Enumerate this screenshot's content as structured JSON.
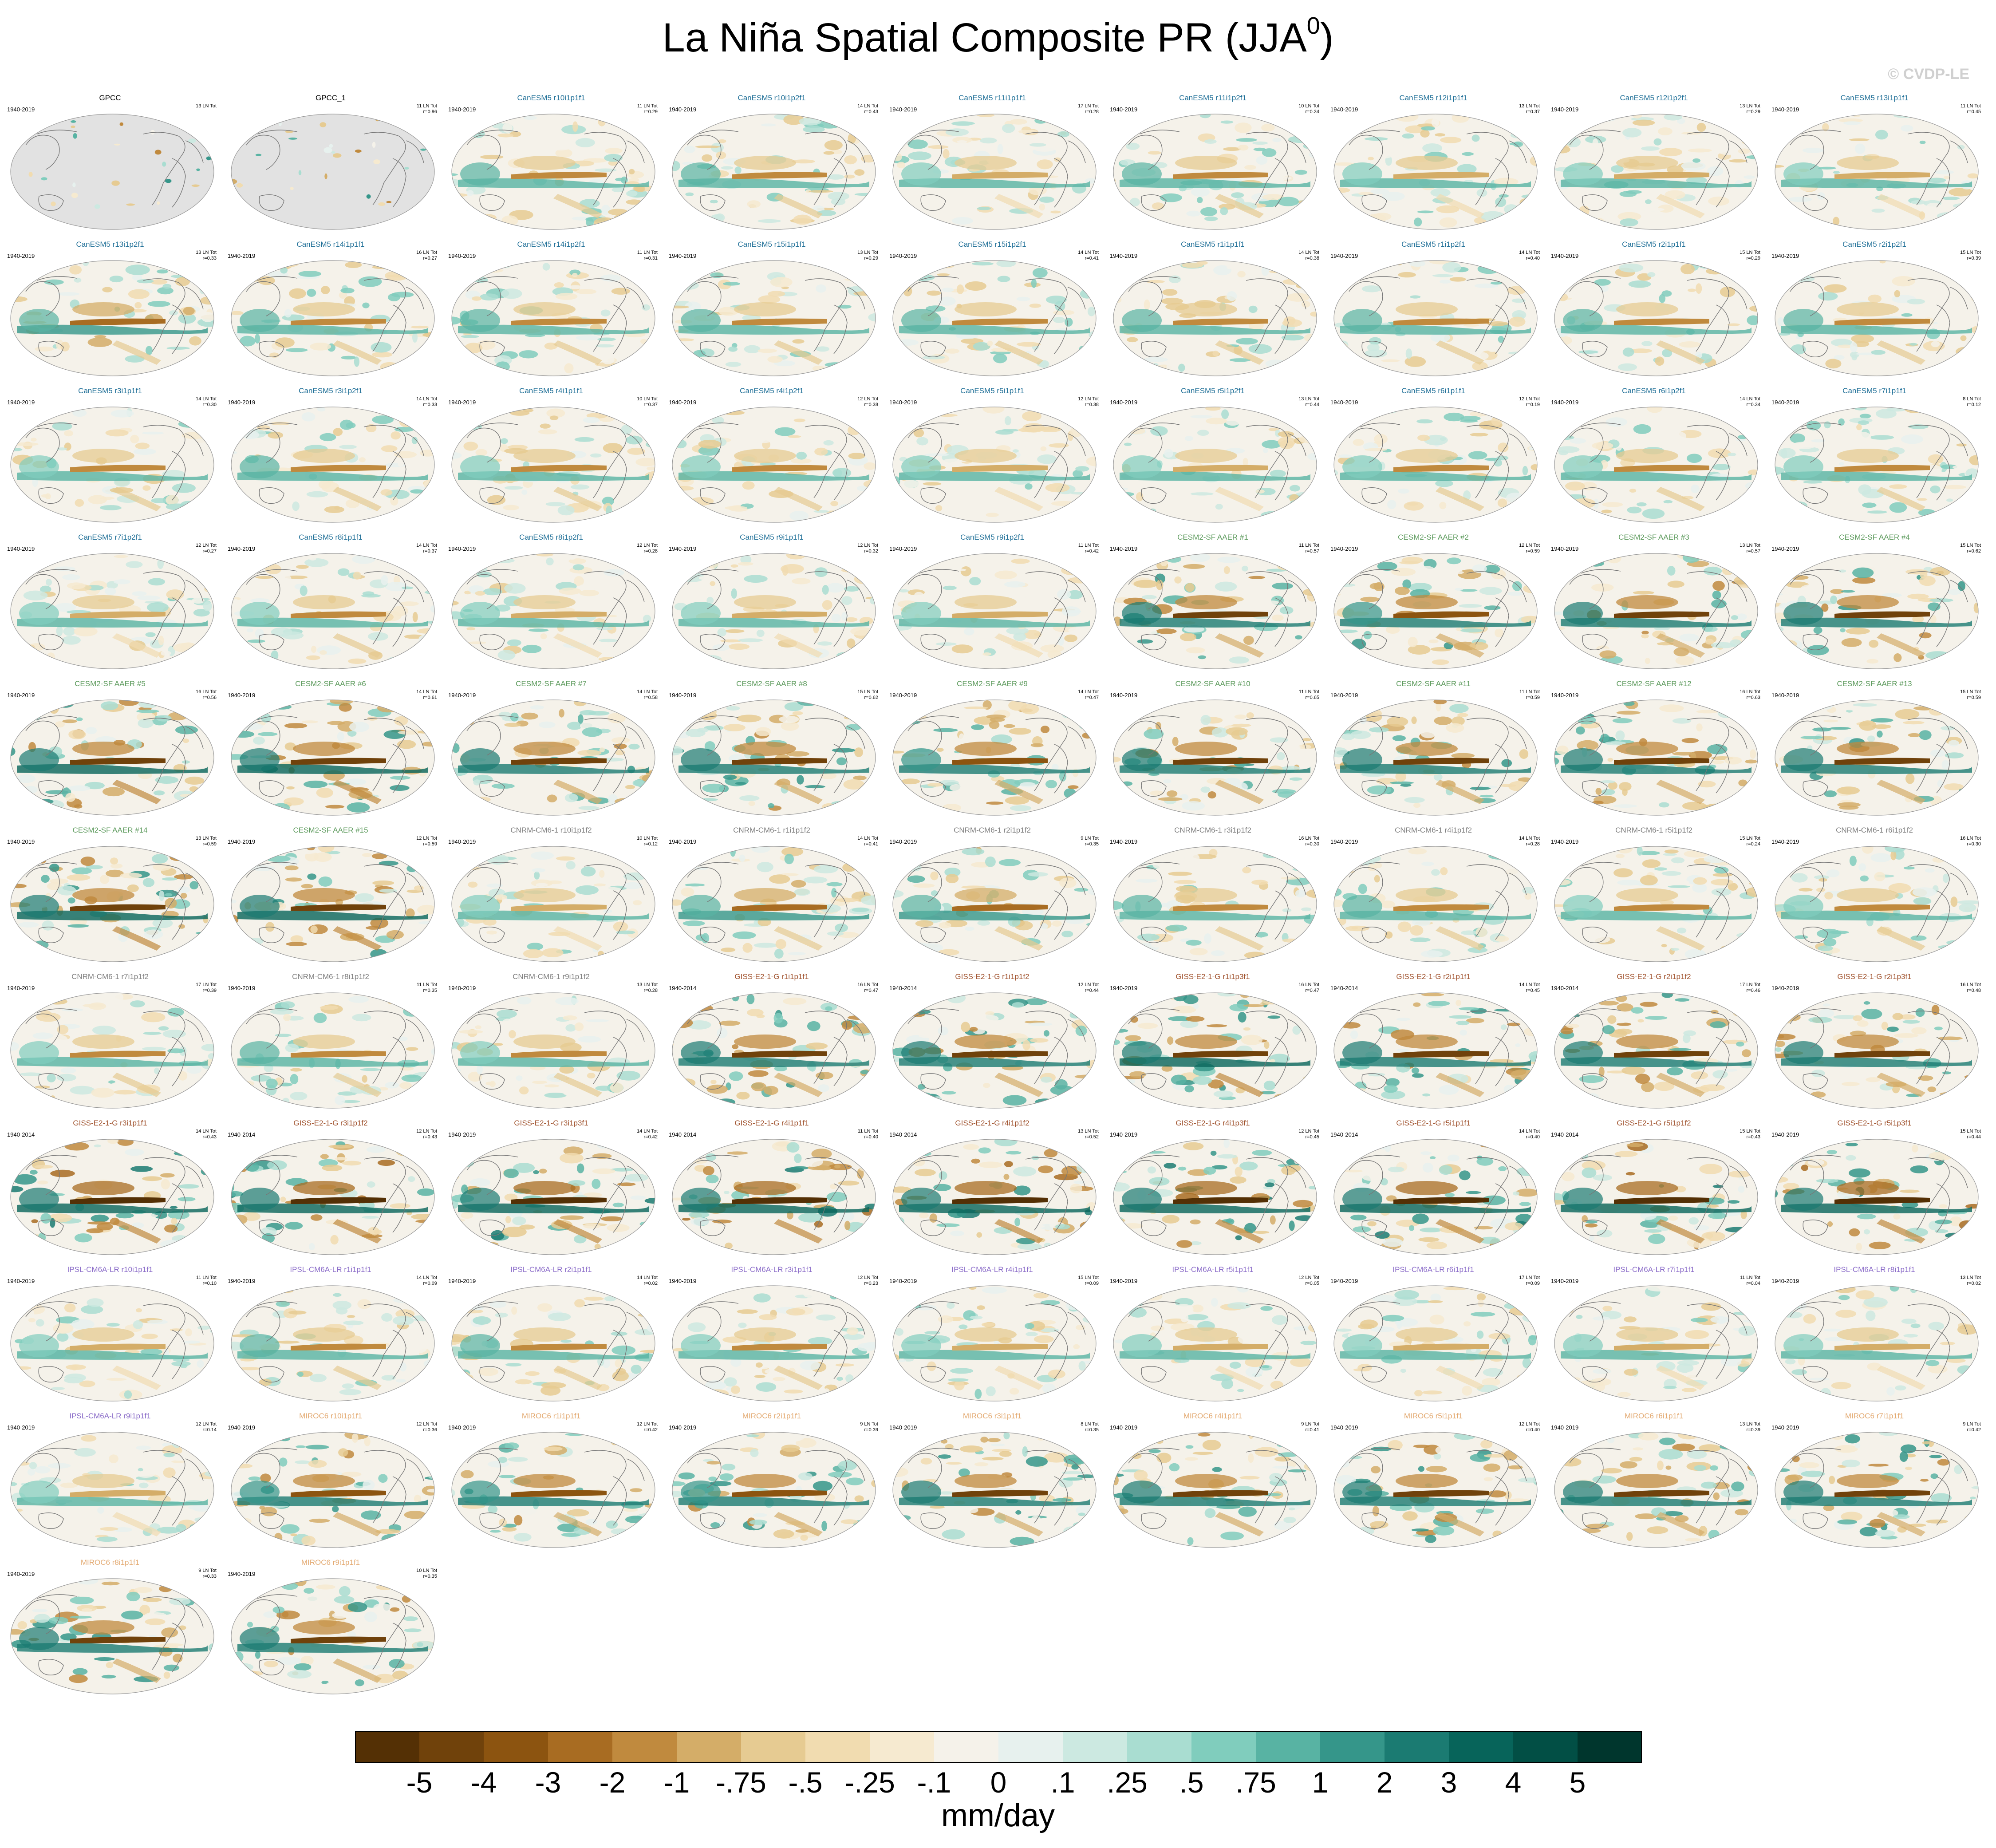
{
  "title": "La Niña Spatial Composite PR (JJA",
  "title_superscript": "0",
  "watermark": "© CVDP-LE",
  "colors": {
    "GPCC": "#000000",
    "CanESM5": "#1f6f97",
    "CESM2-SF AAER": "#5c9a5c",
    "CNRM-CM6-1": "#7f7f7f",
    "GISS-E2-1-G": "#a0522d",
    "IPSL-CM6A-LR": "#8a6bc8",
    "MIROC6": "#e3a970"
  },
  "chart_data": {
    "type": "heatmap",
    "description_values": "map panels of composite precipitation anomaly",
    "colorbar": {
      "units": "mm/day",
      "tick_labels": [
        "-5",
        "-4",
        "-3",
        "-2",
        "-1",
        "-.75",
        "-.5",
        "-.25",
        "-.1",
        "0",
        ".1",
        ".25",
        ".5",
        ".75",
        "1",
        "2",
        "3",
        "4",
        "5"
      ],
      "colors": [
        "#543005",
        "#70420b",
        "#8c5410",
        "#a86c22",
        "#c08a3e",
        "#d4ad68",
        "#e6cb92",
        "#f1dcb0",
        "#f6ead0",
        "#f5f2ea",
        "#e7f1ee",
        "#cce9e1",
        "#a9ddd1",
        "#80cdbd",
        "#58b3a3",
        "#35968a",
        "#1b7b72",
        "#07645a",
        "#024f45",
        "#00362d"
      ]
    },
    "panels": [
      {
        "name": "GPCC",
        "left": "1940-2019",
        "right1": "13 LN Tot",
        "right2": "",
        "model": "GPCC",
        "obs": true
      },
      {
        "name": "GPCC_1",
        "left": "",
        "right1": "11 LN Tot",
        "right2": "r=0.96",
        "model": "GPCC",
        "obs": true
      },
      {
        "name": "CanESM5 r10i1p1f1",
        "left": "1940-2019",
        "right1": "11 LN Tot",
        "right2": "r=0.29",
        "model": "CanESM5",
        "amp": 0.6
      },
      {
        "name": "CanESM5 r10i1p2f1",
        "left": "1940-2019",
        "right1": "14 LN Tot",
        "right2": "r=0.43",
        "model": "CanESM5",
        "amp": 0.6
      },
      {
        "name": "CanESM5 r11i1p1f1",
        "left": "1940-2019",
        "right1": "17 LN Tot",
        "right2": "r=0.28",
        "model": "CanESM5",
        "amp": 0.5
      },
      {
        "name": "CanESM5 r11i1p2f1",
        "left": "1940-2019",
        "right1": "10 LN Tot",
        "right2": "r=0.34",
        "model": "CanESM5",
        "amp": 0.6
      },
      {
        "name": "CanESM5 r12i1p1f1",
        "left": "1940-2019",
        "right1": "13 LN Tot",
        "right2": "r=0.37",
        "model": "CanESM5",
        "amp": 0.5
      },
      {
        "name": "CanESM5 r12i1p2f1",
        "left": "1940-2019",
        "right1": "13 LN Tot",
        "right2": "r=0.29",
        "model": "CanESM5",
        "amp": 0.5
      },
      {
        "name": "CanESM5 r13i1p1f1",
        "left": "1940-2019",
        "right1": "11 LN Tot",
        "right2": "r=0.45",
        "model": "CanESM5",
        "amp": 0.5
      },
      {
        "name": "CanESM5 r13i1p2f1",
        "left": "1940-2019",
        "right1": "13 LN Tot",
        "right2": "r=0.33",
        "model": "CanESM5",
        "amp": 0.7
      },
      {
        "name": "CanESM5 r14i1p1f1",
        "left": "1940-2019",
        "right1": "16 LN Tot",
        "right2": "r=0.27",
        "model": "CanESM5",
        "amp": 0.6
      },
      {
        "name": "CanESM5 r14i1p2f1",
        "left": "1940-2019",
        "right1": "11 LN Tot",
        "right2": "r=0.31",
        "model": "CanESM5",
        "amp": 0.6
      },
      {
        "name": "CanESM5 r15i1p1f1",
        "left": "1940-2019",
        "right1": "13 LN Tot",
        "right2": "r=0.29",
        "model": "CanESM5",
        "amp": 0.6
      },
      {
        "name": "CanESM5 r15i1p2f1",
        "left": "1940-2019",
        "right1": "14 LN Tot",
        "right2": "r=0.41",
        "model": "CanESM5",
        "amp": 0.6
      },
      {
        "name": "CanESM5 r1i1p1f1",
        "left": "1940-2019",
        "right1": "14 LN Tot",
        "right2": "r=0.38",
        "model": "CanESM5",
        "amp": 0.6
      },
      {
        "name": "CanESM5 r1i1p2f1",
        "left": "1940-2019",
        "right1": "14 LN Tot",
        "right2": "r=0.40",
        "model": "CanESM5",
        "amp": 0.6
      },
      {
        "name": "CanESM5 r2i1p1f1",
        "left": "1940-2019",
        "right1": "15 LN Tot",
        "right2": "r=0.29",
        "model": "CanESM5",
        "amp": 0.6
      },
      {
        "name": "CanESM5 r2i1p2f1",
        "left": "1940-2019",
        "right1": "15 LN Tot",
        "right2": "r=0.39",
        "model": "CanESM5",
        "amp": 0.6
      },
      {
        "name": "CanESM5 r3i1p1f1",
        "left": "1940-2019",
        "right1": "14 LN Tot",
        "right2": "r=0.30",
        "model": "CanESM5",
        "amp": 0.55
      },
      {
        "name": "CanESM5 r3i1p2f1",
        "left": "1940-2019",
        "right1": "14 LN Tot",
        "right2": "r=0.33",
        "model": "CanESM5",
        "amp": 0.6
      },
      {
        "name": "CanESM5 r4i1p1f1",
        "left": "1940-2019",
        "right1": "10 LN Tot",
        "right2": "r=0.37",
        "model": "CanESM5",
        "amp": 0.55
      },
      {
        "name": "CanESM5 r4i1p2f1",
        "left": "1940-2019",
        "right1": "12 LN Tot",
        "right2": "r=0.38",
        "model": "CanESM5",
        "amp": 0.55
      },
      {
        "name": "CanESM5 r5i1p1f1",
        "left": "1940-2019",
        "right1": "12 LN Tot",
        "right2": "r=0.38",
        "model": "CanESM5",
        "amp": 0.5
      },
      {
        "name": "CanESM5 r5i1p2f1",
        "left": "1940-2019",
        "right1": "13 LN Tot",
        "right2": "r=0.44",
        "model": "CanESM5",
        "amp": 0.5
      },
      {
        "name": "CanESM5 r6i1p1f1",
        "left": "1940-2019",
        "right1": "12 LN Tot",
        "right2": "r=0.19",
        "model": "CanESM5",
        "amp": 0.55
      },
      {
        "name": "CanESM5 r6i1p2f1",
        "left": "1940-2019",
        "right1": "14 LN Tot",
        "right2": "r=0.34",
        "model": "CanESM5",
        "amp": 0.55
      },
      {
        "name": "CanESM5 r7i1p1f1",
        "left": "1940-2019",
        "right1": "8 LN Tot",
        "right2": "r=0.12",
        "model": "CanESM5",
        "amp": 0.55
      },
      {
        "name": "CanESM5 r7i1p2f1",
        "left": "1940-2019",
        "right1": "12 LN Tot",
        "right2": "r=0.27",
        "model": "CanESM5",
        "amp": 0.5
      },
      {
        "name": "CanESM5 r8i1p1f1",
        "left": "1940-2019",
        "right1": "14 LN Tot",
        "right2": "r=0.37",
        "model": "CanESM5",
        "amp": 0.55
      },
      {
        "name": "CanESM5 r8i1p2f1",
        "left": "1940-2019",
        "right1": "12 LN Tot",
        "right2": "r=0.28",
        "model": "CanESM5",
        "amp": 0.5
      },
      {
        "name": "CanESM5 r9i1p1f1",
        "left": "1940-2019",
        "right1": "12 LN Tot",
        "right2": "r=0.32",
        "model": "CanESM5",
        "amp": 0.5
      },
      {
        "name": "CanESM5 r9i1p2f1",
        "left": "1940-2019",
        "right1": "11 LN Tot",
        "right2": "r=0.42",
        "model": "CanESM5",
        "amp": 0.5
      },
      {
        "name": "CESM2-SF AAER #1",
        "left": "1940-2019",
        "right1": "11 LN Tot",
        "right2": "r=0.57",
        "model": "CESM2-SF AAER",
        "amp": 0.85
      },
      {
        "name": "CESM2-SF AAER #2",
        "left": "1940-2019",
        "right1": "12 LN Tot",
        "right2": "r=0.59",
        "model": "CESM2-SF AAER",
        "amp": 0.8
      },
      {
        "name": "CESM2-SF AAER #3",
        "left": "1940-2019",
        "right1": "13 LN Tot",
        "right2": "r=0.57",
        "model": "CESM2-SF AAER",
        "amp": 0.85
      },
      {
        "name": "CESM2-SF AAER #4",
        "left": "1940-2019",
        "right1": "15 LN Tot",
        "right2": "r=0.62",
        "model": "CESM2-SF AAER",
        "amp": 0.85
      },
      {
        "name": "CESM2-SF AAER #5",
        "left": "1940-2019",
        "right1": "16 LN Tot",
        "right2": "r=0.56",
        "model": "CESM2-SF AAER",
        "amp": 0.9
      },
      {
        "name": "CESM2-SF AAER #6",
        "left": "1940-2019",
        "right1": "14 LN Tot",
        "right2": "r=0.61",
        "model": "CESM2-SF AAER",
        "amp": 0.9
      },
      {
        "name": "CESM2-SF AAER #7",
        "left": "1940-2019",
        "right1": "14 LN Tot",
        "right2": "r=0.58",
        "model": "CESM2-SF AAER",
        "amp": 0.85
      },
      {
        "name": "CESM2-SF AAER #8",
        "left": "1940-2019",
        "right1": "15 LN Tot",
        "right2": "r=0.62",
        "model": "CESM2-SF AAER",
        "amp": 0.85
      },
      {
        "name": "CESM2-SF AAER #9",
        "left": "1940-2019",
        "right1": "14 LN Tot",
        "right2": "r=0.47",
        "model": "CESM2-SF AAER",
        "amp": 0.8
      },
      {
        "name": "CESM2-SF AAER #10",
        "left": "1940-2019",
        "right1": "11 LN Tot",
        "right2": "r=0.65",
        "model": "CESM2-SF AAER",
        "amp": 0.85
      },
      {
        "name": "CESM2-SF AAER #11",
        "left": "1940-2019",
        "right1": "11 LN Tot",
        "right2": "r=0.59",
        "model": "CESM2-SF AAER",
        "amp": 0.85
      },
      {
        "name": "CESM2-SF AAER #12",
        "left": "1940-2019",
        "right1": "16 LN Tot",
        "right2": "r=0.63",
        "model": "CESM2-SF AAER",
        "amp": 0.85
      },
      {
        "name": "CESM2-SF AAER #13",
        "left": "1940-2019",
        "right1": "15 LN Tot",
        "right2": "r=0.59",
        "model": "CESM2-SF AAER",
        "amp": 0.85
      },
      {
        "name": "CESM2-SF AAER #14",
        "left": "1940-2019",
        "right1": "13 LN Tot",
        "right2": "r=0.59",
        "model": "CESM2-SF AAER",
        "amp": 0.9
      },
      {
        "name": "CESM2-SF AAER #15",
        "left": "1940-2019",
        "right1": "12 LN Tot",
        "right2": "r=0.59",
        "model": "CESM2-SF AAER",
        "amp": 0.9
      },
      {
        "name": "CNRM-CM6-1 r10i1p1f2",
        "left": "1940-2019",
        "right1": "10 LN Tot",
        "right2": "r=0.12",
        "model": "CNRM-CM6-1",
        "amp": 0.5
      },
      {
        "name": "CNRM-CM6-1 r1i1p1f2",
        "left": "1940-2019",
        "right1": "14 LN Tot",
        "right2": "r=0.41",
        "model": "CNRM-CM6-1",
        "amp": 0.65
      },
      {
        "name": "CNRM-CM6-1 r2i1p1f2",
        "left": "1940-2019",
        "right1": "9 LN Tot",
        "right2": "r=0.35",
        "model": "CNRM-CM6-1",
        "amp": 0.65
      },
      {
        "name": "CNRM-CM6-1 r3i1p1f2",
        "left": "1940-2019",
        "right1": "16 LN Tot",
        "right2": "r=0.30",
        "model": "CNRM-CM6-1",
        "amp": 0.6
      },
      {
        "name": "CNRM-CM6-1 r4i1p1f2",
        "left": "1940-2019",
        "right1": "14 LN Tot",
        "right2": "r=0.28",
        "model": "CNRM-CM6-1",
        "amp": 0.6
      },
      {
        "name": "CNRM-CM6-1 r5i1p1f2",
        "left": "1940-2019",
        "right1": "15 LN Tot",
        "right2": "r=0.24",
        "model": "CNRM-CM6-1",
        "amp": 0.55
      },
      {
        "name": "CNRM-CM6-1 r6i1p1f2",
        "left": "1940-2019",
        "right1": "16 LN Tot",
        "right2": "r=0.30",
        "model": "CNRM-CM6-1",
        "amp": 0.55
      },
      {
        "name": "CNRM-CM6-1 r7i1p1f2",
        "left": "1940-2019",
        "right1": "17 LN Tot",
        "right2": "r=0.39",
        "model": "CNRM-CM6-1",
        "amp": 0.55
      },
      {
        "name": "CNRM-CM6-1 r8i1p1f2",
        "left": "1940-2019",
        "right1": "11 LN Tot",
        "right2": "r=0.35",
        "model": "CNRM-CM6-1",
        "amp": 0.6
      },
      {
        "name": "CNRM-CM6-1 r9i1p1f2",
        "left": "1940-2019",
        "right1": "13 LN Tot",
        "right2": "r=0.28",
        "model": "CNRM-CM6-1",
        "amp": 0.55
      },
      {
        "name": "GISS-E2-1-G r1i1p1f1",
        "left": "1940-2014",
        "right1": "16 LN Tot",
        "right2": "r=0.47",
        "model": "GISS-E2-1-G",
        "amp": 0.85
      },
      {
        "name": "GISS-E2-1-G r1i1p1f2",
        "left": "1940-2014",
        "right1": "12 LN Tot",
        "right2": "r=0.44",
        "model": "GISS-E2-1-G",
        "amp": 0.85
      },
      {
        "name": "GISS-E2-1-G r1i1p3f1",
        "left": "1940-2019",
        "right1": "16 LN Tot",
        "right2": "r=0.47",
        "model": "GISS-E2-1-G",
        "amp": 0.9
      },
      {
        "name": "GISS-E2-1-G r2i1p1f1",
        "left": "1940-2014",
        "right1": "14 LN Tot",
        "right2": "r=0.45",
        "model": "GISS-E2-1-G",
        "amp": 0.85
      },
      {
        "name": "GISS-E2-1-G r2i1p1f2",
        "left": "1940-2014",
        "right1": "17 LN Tot",
        "right2": "r=0.46",
        "model": "GISS-E2-1-G",
        "amp": 0.85
      },
      {
        "name": "GISS-E2-1-G r2i1p3f1",
        "left": "1940-2019",
        "right1": "16 LN Tot",
        "right2": "r=0.48",
        "model": "GISS-E2-1-G",
        "amp": 0.85
      },
      {
        "name": "GISS-E2-1-G r3i1p1f1",
        "left": "1940-2014",
        "right1": "14 LN Tot",
        "right2": "r=0.43",
        "model": "GISS-E2-1-G",
        "amp": 0.95
      },
      {
        "name": "GISS-E2-1-G r3i1p1f2",
        "left": "1940-2014",
        "right1": "12 LN Tot",
        "right2": "r=0.43",
        "model": "GISS-E2-1-G",
        "amp": 0.95
      },
      {
        "name": "GISS-E2-1-G r3i1p3f1",
        "left": "1940-2019",
        "right1": "14 LN Tot",
        "right2": "r=0.42",
        "model": "GISS-E2-1-G",
        "amp": 0.95
      },
      {
        "name": "GISS-E2-1-G r4i1p1f1",
        "left": "1940-2014",
        "right1": "11 LN Tot",
        "right2": "r=0.40",
        "model": "GISS-E2-1-G",
        "amp": 0.95
      },
      {
        "name": "GISS-E2-1-G r4i1p1f2",
        "left": "1940-2014",
        "right1": "13 LN Tot",
        "right2": "r=0.52",
        "model": "GISS-E2-1-G",
        "amp": 0.95
      },
      {
        "name": "GISS-E2-1-G r4i1p3f1",
        "left": "1940-2019",
        "right1": "12 LN Tot",
        "right2": "r=0.45",
        "model": "GISS-E2-1-G",
        "amp": 0.95
      },
      {
        "name": "GISS-E2-1-G r5i1p1f1",
        "left": "1940-2014",
        "right1": "14 LN Tot",
        "right2": "r=0.40",
        "model": "GISS-E2-1-G",
        "amp": 0.95
      },
      {
        "name": "GISS-E2-1-G r5i1p1f2",
        "left": "1940-2014",
        "right1": "15 LN Tot",
        "right2": "r=0.43",
        "model": "GISS-E2-1-G",
        "amp": 0.95
      },
      {
        "name": "GISS-E2-1-G r5i1p3f1",
        "left": "1940-2019",
        "right1": "15 LN Tot",
        "right2": "r=0.44",
        "model": "GISS-E2-1-G",
        "amp": 0.95
      },
      {
        "name": "IPSL-CM6A-LR r10i1p1f1",
        "left": "1940-2019",
        "right1": "11 LN Tot",
        "right2": "r=0.10",
        "model": "IPSL-CM6A-LR",
        "amp": 0.5
      },
      {
        "name": "IPSL-CM6A-LR r1i1p1f1",
        "left": "1940-2019",
        "right1": "14 LN Tot",
        "right2": "r=0.09",
        "model": "IPSL-CM6A-LR",
        "amp": 0.6
      },
      {
        "name": "IPSL-CM6A-LR r2i1p1f1",
        "left": "1940-2019",
        "right1": "14 LN Tot",
        "right2": "r=0.02",
        "model": "IPSL-CM6A-LR",
        "amp": 0.6
      },
      {
        "name": "IPSL-CM6A-LR r3i1p1f1",
        "left": "1940-2019",
        "right1": "12 LN Tot",
        "right2": "r=0.23",
        "model": "IPSL-CM6A-LR",
        "amp": 0.55
      },
      {
        "name": "IPSL-CM6A-LR r4i1p1f1",
        "left": "1940-2019",
        "right1": "15 LN Tot",
        "right2": "r=0.09",
        "model": "IPSL-CM6A-LR",
        "amp": 0.5
      },
      {
        "name": "IPSL-CM6A-LR r5i1p1f1",
        "left": "1940-2019",
        "right1": "12 LN Tot",
        "right2": "r=0.05",
        "model": "IPSL-CM6A-LR",
        "amp": 0.5
      },
      {
        "name": "IPSL-CM6A-LR r6i1p1f1",
        "left": "1940-2019",
        "right1": "17 LN Tot",
        "right2": "r=0.09",
        "model": "IPSL-CM6A-LR",
        "amp": 0.5
      },
      {
        "name": "IPSL-CM6A-LR r7i1p1f1",
        "left": "1940-2019",
        "right1": "11 LN Tot",
        "right2": "r=0.04",
        "model": "IPSL-CM6A-LR",
        "amp": 0.5
      },
      {
        "name": "IPSL-CM6A-LR r8i1p1f1",
        "left": "1940-2019",
        "right1": "13 LN Tot",
        "right2": "r=0.02",
        "model": "IPSL-CM6A-LR",
        "amp": 0.5
      },
      {
        "name": "IPSL-CM6A-LR r9i1p1f1",
        "left": "1940-2019",
        "right1": "12 LN Tot",
        "right2": "r=0.14",
        "model": "IPSL-CM6A-LR",
        "amp": 0.5
      },
      {
        "name": "MIROC6 r10i1p1f1",
        "left": "1940-2019",
        "right1": "12 LN Tot",
        "right2": "r=0.36",
        "model": "MIROC6",
        "amp": 0.8
      },
      {
        "name": "MIROC6 r1i1p1f1",
        "left": "1940-2019",
        "right1": "12 LN Tot",
        "right2": "r=0.42",
        "model": "MIROC6",
        "amp": 0.8
      },
      {
        "name": "MIROC6 r2i1p1f1",
        "left": "1940-2019",
        "right1": "9 LN Tot",
        "right2": "r=0.39",
        "model": "MIROC6",
        "amp": 0.8
      },
      {
        "name": "MIROC6 r3i1p1f1",
        "left": "1940-2019",
        "right1": "8 LN Tot",
        "right2": "r=0.35",
        "model": "MIROC6",
        "amp": 0.85
      },
      {
        "name": "MIROC6 r4i1p1f1",
        "left": "1940-2019",
        "right1": "9 LN Tot",
        "right2": "r=0.41",
        "model": "MIROC6",
        "amp": 0.85
      },
      {
        "name": "MIROC6 r5i1p1f1",
        "left": "1940-2019",
        "right1": "12 LN Tot",
        "right2": "r=0.40",
        "model": "MIROC6",
        "amp": 0.85
      },
      {
        "name": "MIROC6 r6i1p1f1",
        "left": "1940-2019",
        "right1": "13 LN Tot",
        "right2": "r=0.39",
        "model": "MIROC6",
        "amp": 0.85
      },
      {
        "name": "MIROC6 r7i1p1f1",
        "left": "1940-2019",
        "right1": "9 LN Tot",
        "right2": "r=0.42",
        "model": "MIROC6",
        "amp": 0.85
      },
      {
        "name": "MIROC6 r8i1p1f1",
        "left": "1940-2019",
        "right1": "9 LN Tot",
        "right2": "r=0.33",
        "model": "MIROC6",
        "amp": 0.85
      },
      {
        "name": "MIROC6 r9i1p1f1",
        "left": "1940-2019",
        "right1": "10 LN Tot",
        "right2": "r=0.35",
        "model": "MIROC6",
        "amp": 0.85
      }
    ]
  }
}
